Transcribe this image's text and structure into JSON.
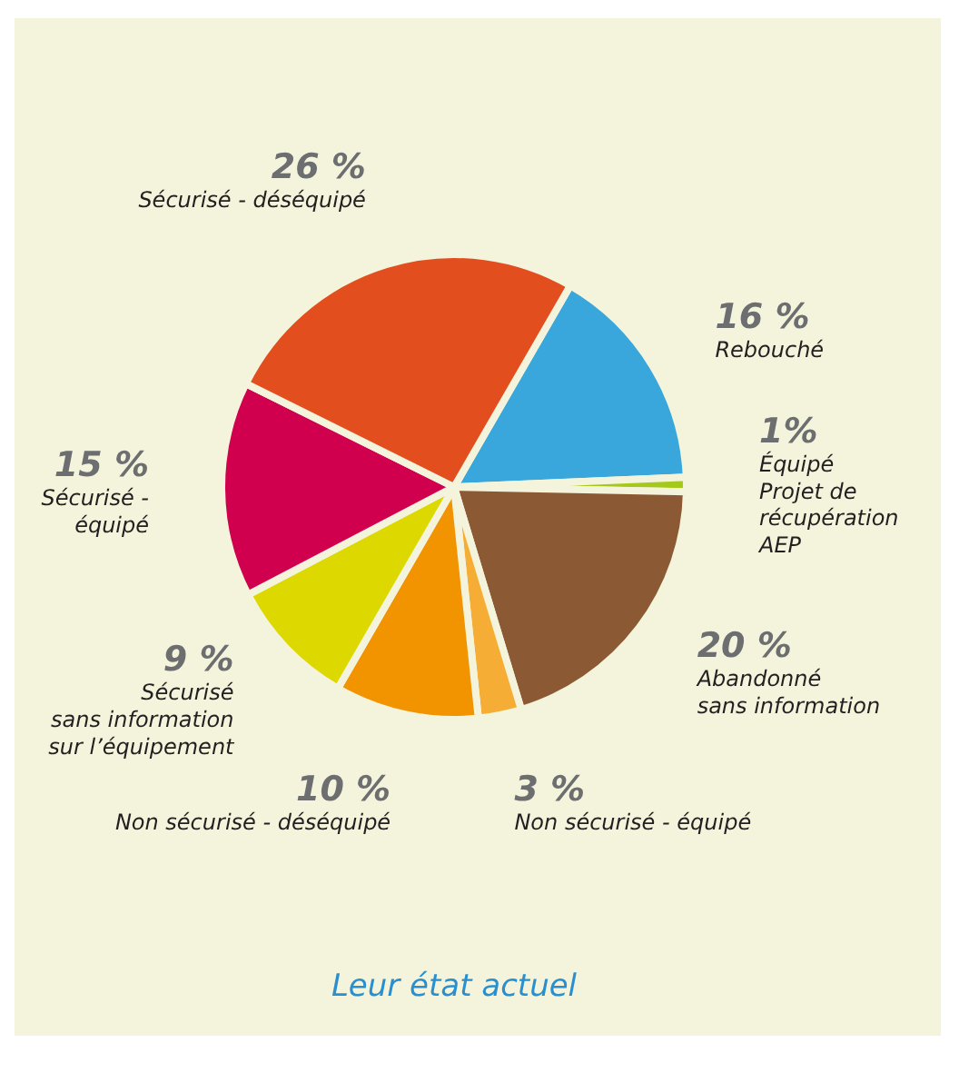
{
  "chart_data": {
    "type": "pie",
    "title": "Leur état actuel",
    "categories": [
      "Rebouché",
      "Équipé\nProjet de\nrécupération\nAEP",
      "Abandonné\nsans information",
      "Non sécurisé - équipé",
      "Non sécurisé - déséquipé",
      "Sécurisé\nsans information\nsur l’équipement",
      "Sécurisé -\néquipé",
      "Sécurisé - déséquipé"
    ],
    "values": [
      16,
      1,
      20,
      3,
      10,
      9,
      15,
      26
    ],
    "value_labels": [
      "16 %",
      "1%",
      "20 %",
      "3 %",
      "10 %",
      "9 %",
      "15 %",
      "26 %"
    ],
    "colors": [
      "#39a7db",
      "#a6c81a",
      "#8b5a35",
      "#f5ad36",
      "#f29400",
      "#dcd800",
      "#d1004f",
      "#e34e1f"
    ]
  }
}
